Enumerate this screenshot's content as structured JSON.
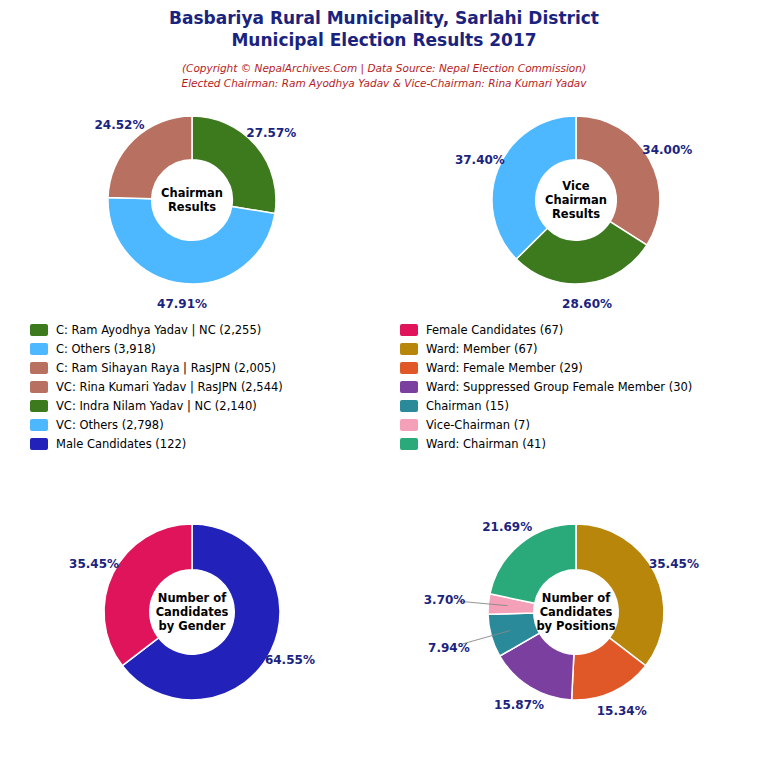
{
  "title": [
    "Basbariya Rural Municipality, Sarlahi District",
    "Municipal Election Results 2017"
  ],
  "subtitle": [
    "(Copyright © NepalArchives.Com | Data Source: Nepal Election Commission)",
    "Elected Chairman: Ram Ayodhya Yadav & Vice-Chairman: Rina Kumari Yadav"
  ],
  "chart_data": [
    {
      "type": "pie",
      "title": "Chairman\nResults",
      "categories": [
        "C: Ram Ayodhya Yadav | NC (2,255)",
        "C: Others (3,918)",
        "C: Ram Sihayan Raya | RasJPN (2,005)"
      ],
      "values": [
        27.57,
        47.91,
        24.52
      ],
      "value_labels": [
        "27.57%",
        "47.91%",
        "24.52%"
      ],
      "colors": [
        "#3d7a1e",
        "#4db8ff",
        "#b87060"
      ],
      "data_labels": true
    },
    {
      "type": "pie",
      "title": "Vice\nChairman\nResults",
      "categories": [
        "VC: Rina Kumari Yadav | RasJPN (2,544)",
        "VC: Indra Nilam Yadav | NC (2,140)",
        "VC: Others (2,798)"
      ],
      "values": [
        34.0,
        28.6,
        37.4
      ],
      "value_labels": [
        "34.00%",
        "28.60%",
        "37.40%"
      ],
      "colors": [
        "#b87060",
        "#3d7a1e",
        "#4db8ff"
      ],
      "data_labels": true
    },
    {
      "type": "pie",
      "title": "Number of\nCandidates\nby Gender",
      "categories": [
        "Male Candidates (122)",
        "Female Candidates (67)"
      ],
      "values": [
        64.55,
        35.45
      ],
      "value_labels": [
        "64.55%",
        "35.45%"
      ],
      "colors": [
        "#2222bb",
        "#e0145a"
      ],
      "data_labels": true
    },
    {
      "type": "pie",
      "title": "Number of\nCandidates\nby Positions",
      "categories": [
        "Ward: Member (67)",
        "Ward: Female Member (29)",
        "Ward: Suppressed Group Female Member (30)",
        "Chairman (15)",
        "Vice-Chairman (7)",
        "Ward: Chairman (41)"
      ],
      "values": [
        35.45,
        15.34,
        15.87,
        7.94,
        3.7,
        21.69
      ],
      "value_labels": [
        "35.45%",
        "15.34%",
        "15.87%",
        "7.94%",
        "3.70%",
        "21.69%"
      ],
      "colors": [
        "#b8860b",
        "#e05828",
        "#7b3fa0",
        "#2a8a9a",
        "#f4a0b8",
        "#2aaa7a"
      ],
      "data_labels": true
    }
  ]
}
